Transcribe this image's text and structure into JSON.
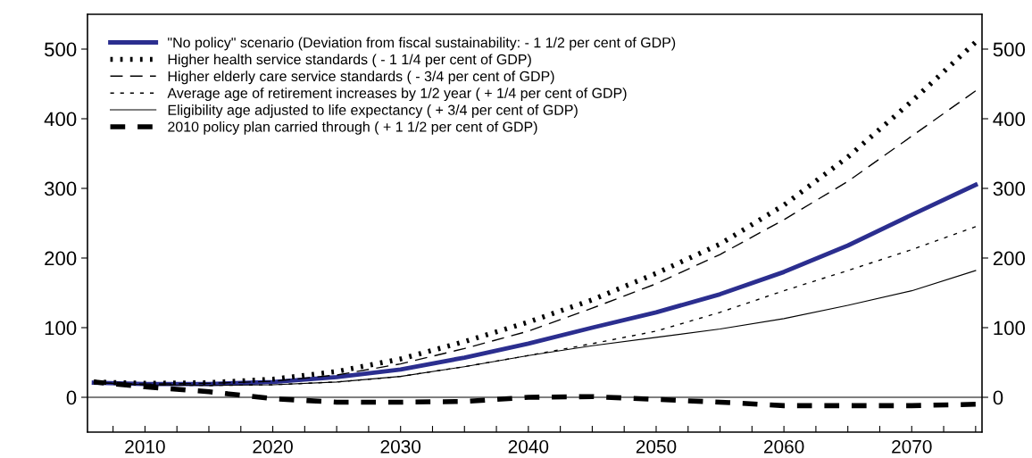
{
  "chart_data": {
    "type": "line",
    "x": [
      2006,
      2010,
      2015,
      2020,
      2025,
      2030,
      2035,
      2040,
      2045,
      2050,
      2055,
      2060,
      2065,
      2070,
      2075
    ],
    "series": [
      {
        "name": "\"No policy\" scenario (Deviation from fiscal sustainability: - 1 1/2 per cent of GDP)",
        "color": "#2b2e8f",
        "line_style": "solid",
        "values": [
          21,
          19,
          19,
          22,
          29,
          40,
          57,
          77,
          100,
          122,
          148,
          180,
          218,
          262,
          305
        ]
      },
      {
        "name": "Higher health service standards ( - 1 1/4 per cent of GDP)",
        "color": "#000000",
        "line_style": "dotted",
        "values": [
          22,
          20,
          21,
          26,
          37,
          55,
          80,
          108,
          140,
          178,
          220,
          276,
          345,
          425,
          510
        ]
      },
      {
        "name": "Higher elderly care service standards ( - 3/4 per cent of GDP)",
        "color": "#000000",
        "line_style": "dashed",
        "values": [
          21,
          19,
          20,
          23,
          32,
          48,
          70,
          95,
          128,
          163,
          205,
          255,
          310,
          375,
          440
        ]
      },
      {
        "name": "Average age of retirement increases by 1/2 year ( + 1/4 per cent of GDP)",
        "color": "#000000",
        "line_style": "dashed",
        "values": [
          21,
          18,
          17,
          18,
          22,
          30,
          44,
          60,
          77,
          95,
          122,
          153,
          182,
          212,
          245
        ]
      },
      {
        "name": "Eligibility age adjusted to life expectancy ( + 3/4 per cent of GDP)",
        "color": "#000000",
        "line_style": "solid",
        "values": [
          21,
          18,
          17,
          18,
          22,
          30,
          44,
          60,
          74,
          86,
          98,
          113,
          132,
          153,
          182
        ]
      },
      {
        "name": "2010 policy plan carried through ( + 1 1/2 per cent of GDP)",
        "color": "#000000",
        "line_style": "dashed",
        "values": [
          22,
          15,
          8,
          -2,
          -7,
          -7,
          -6,
          0,
          1,
          -3,
          -7,
          -12,
          -12,
          -12,
          -10
        ]
      }
    ],
    "xlim": [
      2005.5,
      2075.5
    ],
    "xticks": [
      {
        "value": 2007.5,
        "label": null
      },
      2010,
      {
        "value": 2012.5,
        "label": null
      },
      {
        "value": 2015,
        "label": null
      },
      {
        "value": 2017.5,
        "label": null
      },
      2020,
      {
        "value": 2022.5,
        "label": null
      },
      {
        "value": 2025,
        "label": null
      },
      {
        "value": 2027.5,
        "label": null
      },
      2030,
      {
        "value": 2032.5,
        "label": null
      },
      {
        "value": 2035,
        "label": null
      },
      {
        "value": 2037.5,
        "label": null
      },
      2040,
      {
        "value": 2042.5,
        "label": null
      },
      {
        "value": 2045,
        "label": null
      },
      {
        "value": 2047.5,
        "label": null
      },
      2050,
      {
        "value": 2052.5,
        "label": null
      },
      {
        "value": 2055,
        "label": null
      },
      {
        "value": 2057.5,
        "label": null
      },
      2060,
      {
        "value": 2062.5,
        "label": null
      },
      {
        "value": 2065,
        "label": null
      },
      {
        "value": 2067.5,
        "label": null
      },
      2070,
      {
        "value": 2072.5,
        "label": null
      },
      {
        "value": 2075,
        "label": null
      }
    ],
    "ylim": [
      -50,
      550
    ],
    "yticks": [
      0,
      100,
      200,
      300,
      400,
      500
    ],
    "y2lim": [
      -50,
      550
    ],
    "y2ticks": [
      0,
      100,
      200,
      300,
      400,
      500
    ],
    "ref_lines": [
      {
        "axis": "y",
        "value": 0,
        "color": "#000000"
      }
    ],
    "grid": false,
    "legend": "top left"
  }
}
